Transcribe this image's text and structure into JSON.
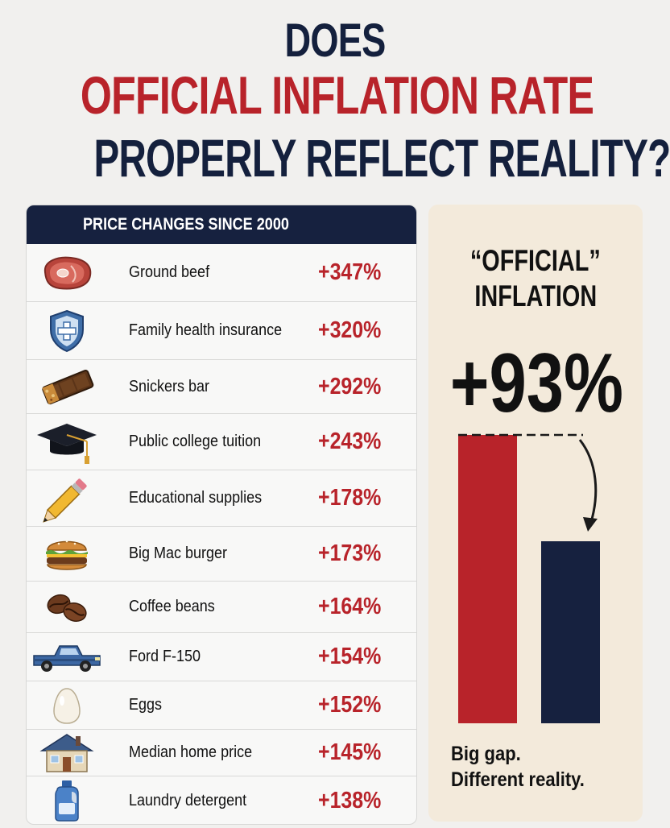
{
  "headline": {
    "line1": "DOES",
    "line2": "OFFICIAL INFLATION RATE",
    "line3": "PROPERLY REFLECT REALITY?"
  },
  "price_panel": {
    "header": "PRICE CHANGES SINCE 2000",
    "items": [
      {
        "label": "Ground beef",
        "change": "+347%",
        "icon": "steak-icon"
      },
      {
        "label": "Family health insurance",
        "change": "+320%",
        "icon": "shield-cross-icon"
      },
      {
        "label": "Snickers bar",
        "change": "+292%",
        "icon": "candy-bar-icon"
      },
      {
        "label": "Public college tuition",
        "change": "+243%",
        "icon": "graduation-cap-icon"
      },
      {
        "label": "Educational supplies",
        "change": "+178%",
        "icon": "pencil-icon"
      },
      {
        "label": "Big Mac burger",
        "change": "+173%",
        "icon": "burger-icon"
      },
      {
        "label": "Coffee beans",
        "change": "+164%",
        "icon": "coffee-beans-icon"
      },
      {
        "label": "Ford F-150",
        "change": "+154%",
        "icon": "pickup-truck-icon"
      },
      {
        "label": "Eggs",
        "change": "+152%",
        "icon": "egg-icon"
      },
      {
        "label": "Median home price",
        "change": "+145%",
        "icon": "house-icon"
      },
      {
        "label": "Laundry detergent",
        "change": "+138%",
        "icon": "detergent-bottle-icon"
      }
    ]
  },
  "official_panel": {
    "title_line1": "“OFFICIAL”",
    "title_line2": "INFLATION",
    "value": "+93%",
    "caption_line1": "Big gap.",
    "caption_line2": "Different reality."
  },
  "colors": {
    "red": "#b8232a",
    "navy": "#16213f",
    "panel_beige": "#f3eadb"
  }
}
